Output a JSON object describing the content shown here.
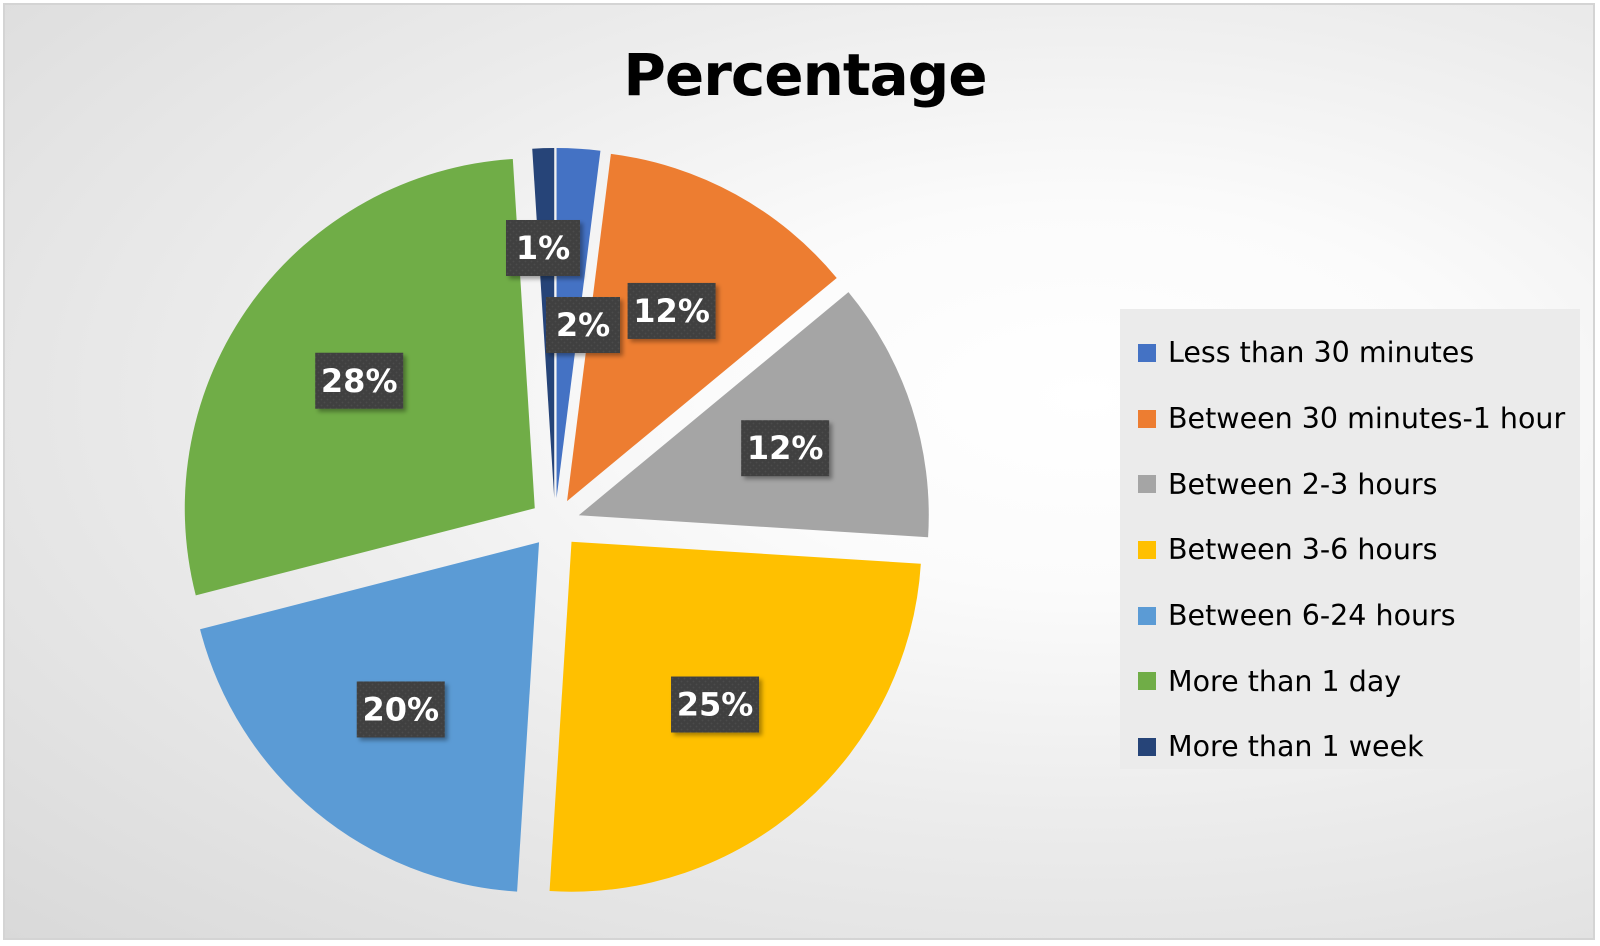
{
  "chart_data": {
    "type": "pie",
    "title": "Percentage",
    "legend_position": "right",
    "start_angle_deg": 0,
    "direction": "clockwise",
    "exploded": true,
    "slices": [
      {
        "name": "Less than 30 minutes",
        "value": 2,
        "label": "2%",
        "color": "#4472C4"
      },
      {
        "name": "Between 30 minutes-1 hour",
        "value": 12,
        "label": "12%",
        "color": "#ED7D31"
      },
      {
        "name": "Between 2-3 hours",
        "value": 12,
        "label": "12%",
        "color": "#A5A5A5"
      },
      {
        "name": "Between 3-6 hours",
        "value": 25,
        "label": "25%",
        "color": "#FFC000"
      },
      {
        "name": "Between 6-24 hours",
        "value": 20,
        "label": "20%",
        "color": "#5B9BD5"
      },
      {
        "name": "More than 1 day",
        "value": 28,
        "label": "28%",
        "color": "#70AD47"
      },
      {
        "name": "More than 1 week",
        "value": 1,
        "label": "1%",
        "color": "#264478"
      }
    ]
  }
}
